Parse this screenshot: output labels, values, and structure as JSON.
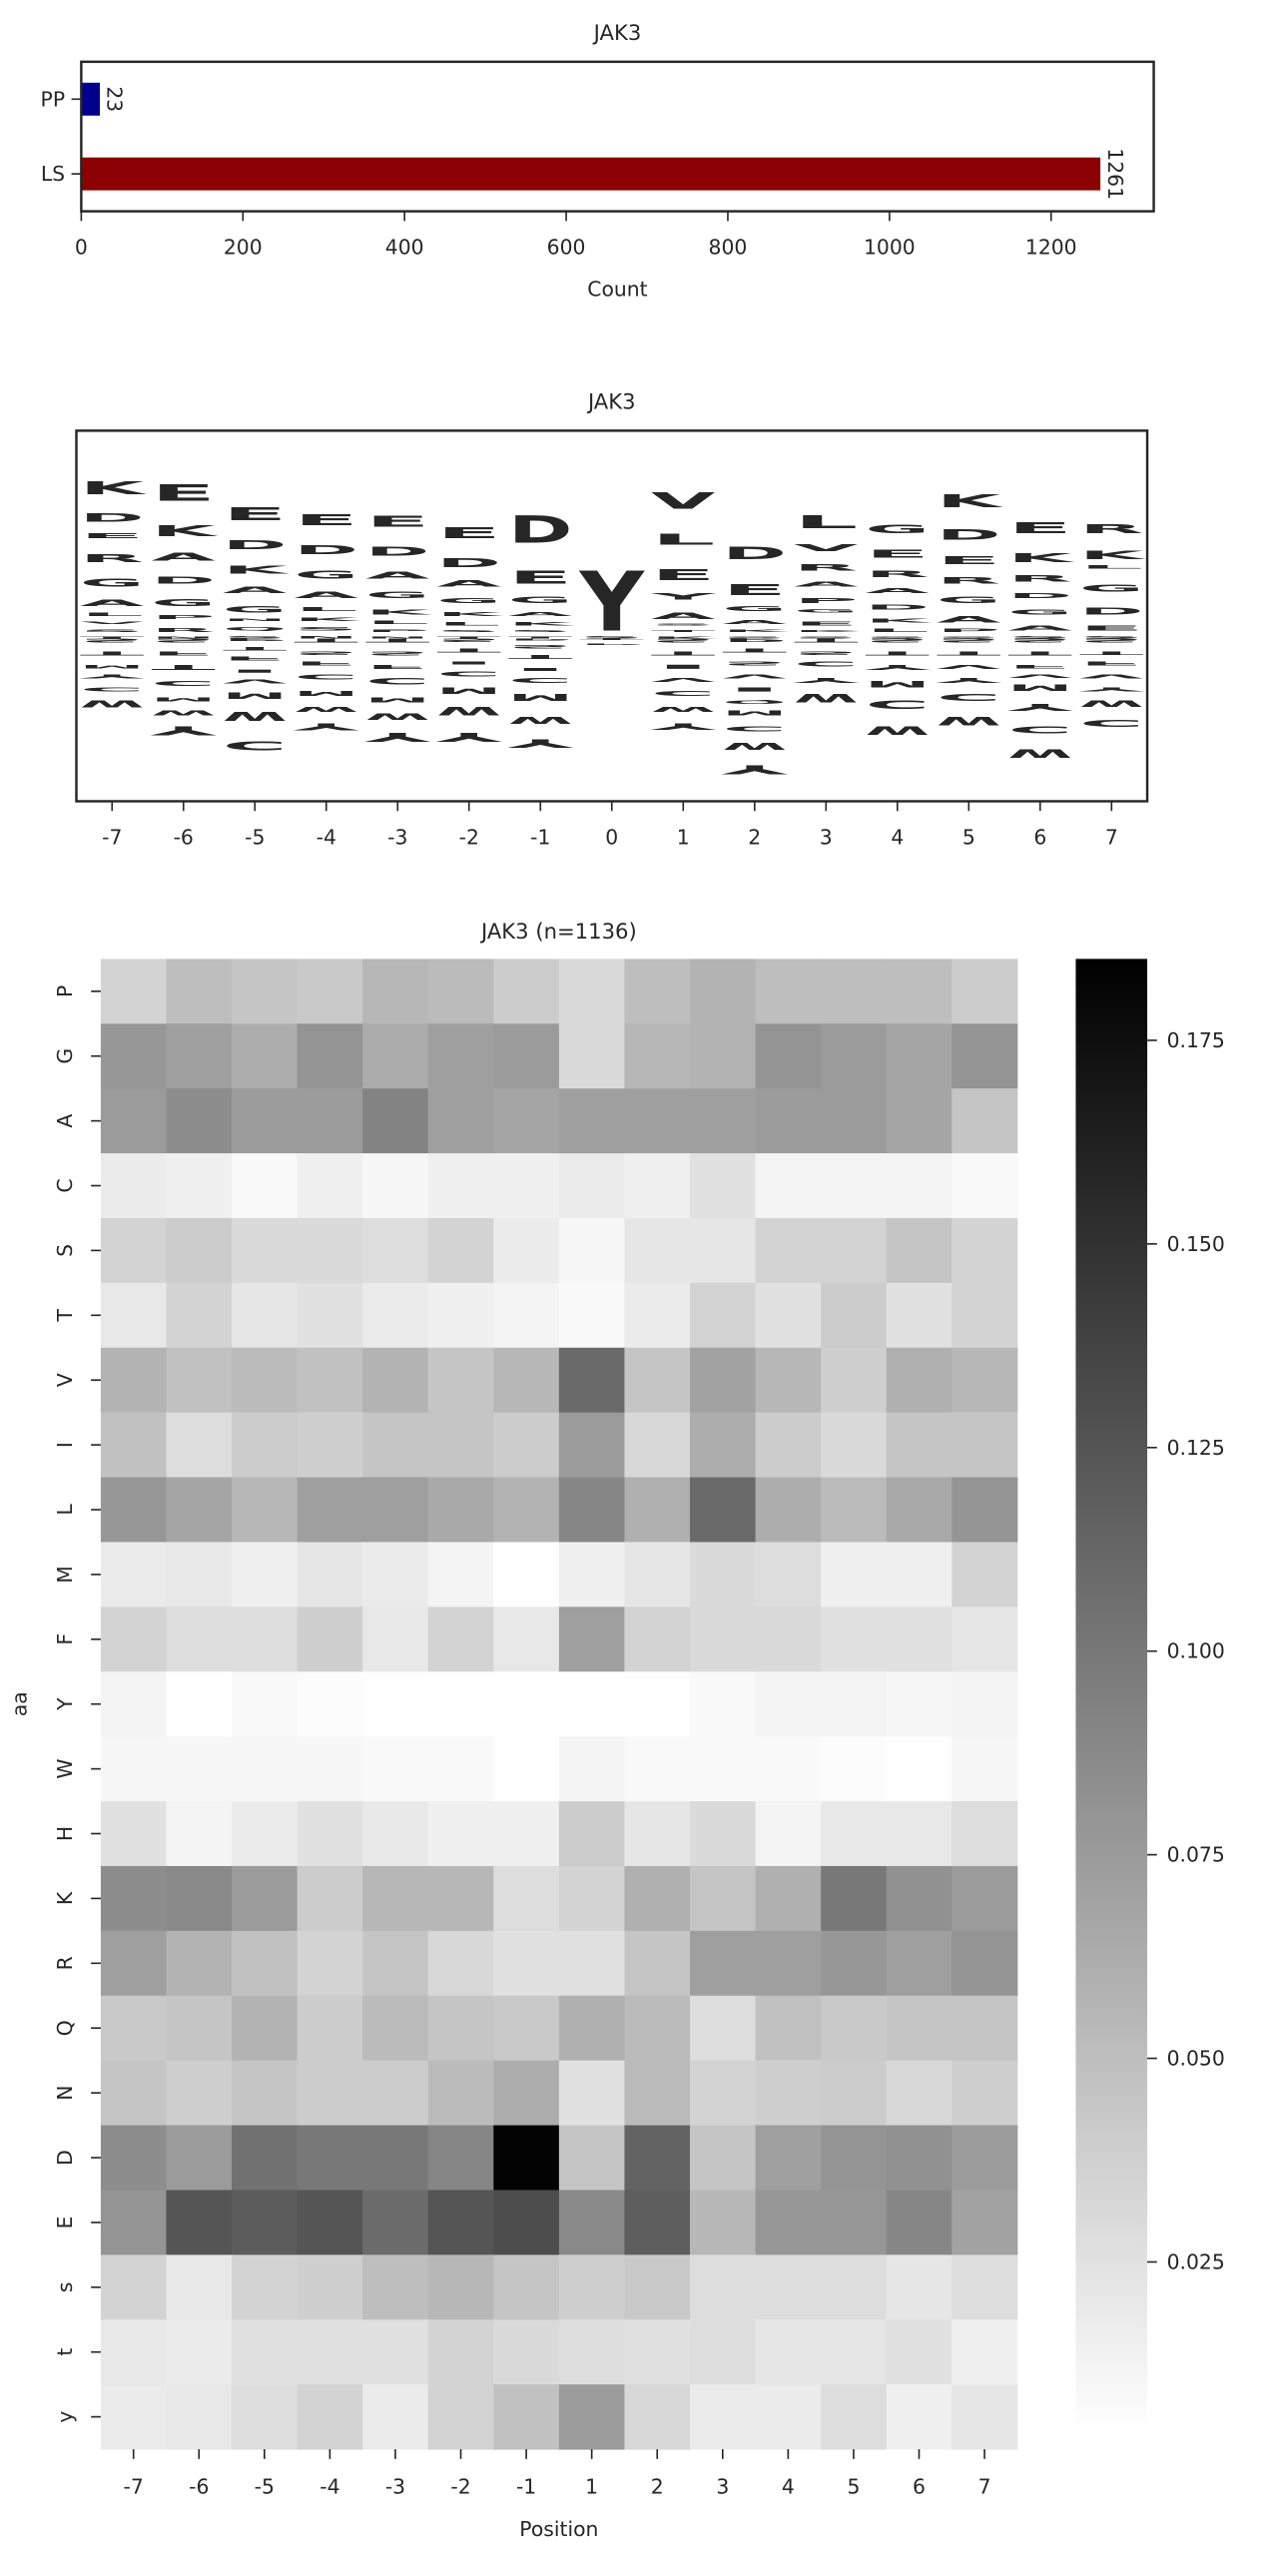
{
  "chart_data": [
    {
      "type": "bar",
      "orientation": "horizontal",
      "title": "JAK3",
      "categories": [
        "PP",
        "LS"
      ],
      "values": [
        23,
        1261
      ],
      "colors": [
        "#00008b",
        "#8b0000"
      ],
      "xlim": [
        0,
        1327
      ],
      "xticks": [
        0,
        200,
        400,
        600,
        800,
        1000,
        1200
      ],
      "xlabel": "Count"
    },
    {
      "type": "logo",
      "title": "JAK3",
      "categories": [
        "-7",
        "-6",
        "-5",
        "-4",
        "-3",
        "-2",
        "-1",
        "0",
        "1",
        "2",
        "3",
        "4",
        "5",
        "6",
        "7"
      ],
      "ylim": [
        -100,
        128
      ],
      "letter_colors": {
        "K": "#0000ff",
        "R": "#0000ff",
        "H": "#0000ff",
        "D": "#dc143c",
        "E": "#dc143c",
        "G": "#008000",
        "A": "#008000",
        "S": "#9932cc",
        "T": "#9932cc",
        "N": "#9932cc",
        "Q": "#9932cc",
        "P": "#000000",
        "L": "#daa520",
        "V": "#daa520",
        "I": "#daa520",
        "M": "#daa520",
        "C": "#daa520",
        "W": "#daa520",
        "F": "#daa520",
        "Y": "#8b4513"
      },
      "stacks": [
        {
          "letters": [
            "T",
            "S",
            "V",
            "L",
            "A",
            "G",
            "R",
            "E",
            "D",
            "K",
            "S",
            "T",
            "M",
            "Y",
            "C",
            "W"
          ],
          "heights": [
            4,
            5,
            5,
            6,
            12,
            15,
            15,
            10,
            17,
            25,
            -8,
            -8,
            -6,
            -8,
            -8,
            -14
          ]
        },
        {
          "letters": [
            "N",
            "R",
            "P",
            "G",
            "D",
            "A",
            "K",
            "E",
            "S",
            "F",
            "T",
            "C",
            "M",
            "W",
            "Y"
          ],
          "heights": [
            4,
            8,
            8,
            14,
            14,
            15,
            22,
            32,
            -8,
            -8,
            -10,
            -10,
            -8,
            -10,
            -18
          ]
        },
        {
          "letters": [
            "S",
            "Q",
            "N",
            "G",
            "A",
            "K",
            "D",
            "E",
            "P",
            "T",
            "F",
            "I",
            "V",
            "M",
            "W",
            "C"
          ],
          "heights": [
            5,
            6,
            5,
            12,
            12,
            15,
            18,
            25,
            -5,
            -6,
            -8,
            -6,
            -8,
            -12,
            -18,
            -18
          ]
        },
        {
          "letters": [
            "N",
            "S",
            "K",
            "L",
            "A",
            "G",
            "D",
            "E",
            "T",
            "S",
            "F",
            "C",
            "M",
            "W",
            "Y"
          ],
          "heights": [
            5,
            6,
            6,
            8,
            12,
            15,
            18,
            22,
            -8,
            -6,
            -8,
            -10,
            -10,
            -10,
            -14
          ]
        },
        {
          "letters": [
            "N",
            "P",
            "L",
            "K",
            "G",
            "A",
            "D",
            "E",
            "T",
            "S",
            "F",
            "C",
            "M",
            "W",
            "Y"
          ],
          "heights": [
            4,
            5,
            6,
            10,
            12,
            14,
            18,
            22,
            -8,
            -8,
            -8,
            -12,
            -10,
            -12,
            -18
          ]
        },
        {
          "letters": [
            "T",
            "S",
            "L",
            "K",
            "G",
            "A",
            "D",
            "E",
            "S",
            "T",
            "I",
            "C",
            "M",
            "W",
            "Y"
          ],
          "heights": [
            4,
            4,
            6,
            8,
            10,
            12,
            18,
            22,
            -6,
            -8,
            -6,
            -10,
            -12,
            -16,
            -18
          ]
        },
        {
          "letters": [
            "T",
            "S",
            "K",
            "A",
            "G",
            "E",
            "D",
            "P",
            "S",
            "T",
            "I",
            "C",
            "M",
            "W",
            "Y"
          ],
          "heights": [
            4,
            4,
            6,
            8,
            12,
            25,
            53,
            -4,
            -6,
            -8,
            -6,
            -10,
            -14,
            -14,
            -16
          ]
        },
        {
          "letters": [
            "S",
            "Y",
            "T",
            "P"
          ],
          "heights": [
            5,
            118,
            -3,
            -2
          ]
        },
        {
          "letters": [
            "K",
            "T",
            "S",
            "A",
            "Y",
            "E",
            "L",
            "V",
            "S",
            "T",
            "I",
            "V",
            "C",
            "W",
            "Y"
          ],
          "heights": [
            4,
            4,
            4,
            12,
            12,
            22,
            22,
            32,
            -8,
            -8,
            -8,
            -8,
            -10,
            -10,
            -12
          ]
        },
        {
          "letters": [
            "S",
            "K",
            "A",
            "G",
            "E",
            "D",
            "P",
            "T",
            "S",
            "V",
            "I",
            "Q",
            "M",
            "C",
            "W",
            "Y"
          ],
          "heights": [
            4,
            5,
            8,
            10,
            22,
            24,
            -6,
            -8,
            -8,
            -8,
            -8,
            -6,
            -10,
            -10,
            -14,
            -18
          ]
        },
        {
          "letters": [
            "S",
            "K",
            "E",
            "G",
            "P",
            "A",
            "R",
            "V",
            "L",
            "T",
            "S",
            "C",
            "Y",
            "W"
          ],
          "heights": [
            4,
            4,
            8,
            6,
            10,
            10,
            12,
            14,
            25,
            -8,
            -6,
            -10,
            -10,
            -16
          ]
        },
        {
          "letters": [
            "S",
            "L",
            "K",
            "D",
            "A",
            "R",
            "E",
            "G",
            "S",
            "T",
            "Y",
            "M",
            "C",
            "W"
          ],
          "heights": [
            4,
            6,
            8,
            10,
            10,
            12,
            15,
            16,
            -8,
            -8,
            -10,
            -12,
            -16,
            -16
          ]
        },
        {
          "letters": [
            "S",
            "P",
            "A",
            "G",
            "R",
            "E",
            "D",
            "K",
            "S",
            "T",
            "V",
            "Y",
            "C",
            "W"
          ],
          "heights": [
            4,
            6,
            12,
            12,
            12,
            15,
            20,
            25,
            -8,
            -8,
            -8,
            -10,
            -14,
            -16
          ]
        },
        {
          "letters": [
            "S",
            "A",
            "G",
            "D",
            "R",
            "K",
            "E",
            "S",
            "T",
            "F",
            "V",
            "M",
            "Y",
            "C",
            "W"
          ],
          "heights": [
            5,
            10,
            10,
            10,
            12,
            18,
            22,
            -8,
            -8,
            -6,
            -6,
            -12,
            -14,
            -14,
            -16
          ]
        },
        {
          "letters": [
            "S",
            "E",
            "D",
            "G",
            "L",
            "K",
            "R",
            "S",
            "T",
            "F",
            "V",
            "Y",
            "W",
            "C"
          ],
          "heights": [
            5,
            10,
            14,
            14,
            6,
            16,
            18,
            -8,
            -6,
            -8,
            -8,
            -8,
            -12,
            -14
          ]
        }
      ]
    },
    {
      "type": "heatmap",
      "title": "JAK3 (n=1136)",
      "xlabel": "Position",
      "ylabel": "aa",
      "x_categories": [
        "-7",
        "-6",
        "-5",
        "-4",
        "-3",
        "-2",
        "-1",
        "1",
        "2",
        "3",
        "4",
        "5",
        "6",
        "7"
      ],
      "y_categories": [
        "P",
        "G",
        "A",
        "C",
        "S",
        "T",
        "V",
        "I",
        "L",
        "M",
        "F",
        "Y",
        "W",
        "H",
        "K",
        "R",
        "Q",
        "N",
        "D",
        "E",
        "s",
        "t",
        "y"
      ],
      "values": [
        [
          0.035,
          0.05,
          0.045,
          0.042,
          0.055,
          0.052,
          0.04,
          0.03,
          0.05,
          0.058,
          0.05,
          0.05,
          0.05,
          0.04
        ],
        [
          0.078,
          0.072,
          0.062,
          0.08,
          0.063,
          0.072,
          0.075,
          0.03,
          0.055,
          0.058,
          0.08,
          0.075,
          0.068,
          0.08
        ],
        [
          0.075,
          0.085,
          0.075,
          0.075,
          0.092,
          0.072,
          0.068,
          0.072,
          0.072,
          0.072,
          0.075,
          0.075,
          0.068,
          0.045
        ],
        [
          0.018,
          0.015,
          0.008,
          0.015,
          0.01,
          0.015,
          0.015,
          0.018,
          0.015,
          0.025,
          0.012,
          0.012,
          0.012,
          0.008
        ],
        [
          0.035,
          0.04,
          0.03,
          0.03,
          0.028,
          0.035,
          0.018,
          0.01,
          0.022,
          0.022,
          0.035,
          0.035,
          0.045,
          0.035
        ],
        [
          0.02,
          0.035,
          0.022,
          0.025,
          0.018,
          0.015,
          0.012,
          0.008,
          0.018,
          0.035,
          0.025,
          0.04,
          0.025,
          0.035
        ],
        [
          0.058,
          0.048,
          0.052,
          0.048,
          0.058,
          0.045,
          0.055,
          0.11,
          0.045,
          0.07,
          0.055,
          0.038,
          0.06,
          0.055
        ],
        [
          0.048,
          0.028,
          0.04,
          0.038,
          0.045,
          0.045,
          0.04,
          0.075,
          0.032,
          0.062,
          0.04,
          0.03,
          0.045,
          0.045
        ],
        [
          0.078,
          0.068,
          0.055,
          0.072,
          0.072,
          0.065,
          0.058,
          0.09,
          0.06,
          0.11,
          0.062,
          0.052,
          0.065,
          0.08
        ],
        [
          0.018,
          0.02,
          0.015,
          0.022,
          0.018,
          0.012,
          0.005,
          0.015,
          0.022,
          0.03,
          0.028,
          0.015,
          0.015,
          0.035
        ],
        [
          0.035,
          0.028,
          0.028,
          0.038,
          0.02,
          0.035,
          0.02,
          0.072,
          0.035,
          0.03,
          0.03,
          0.025,
          0.025,
          0.022
        ],
        [
          0.012,
          0.004,
          0.008,
          0.006,
          0.005,
          0.004,
          0.004,
          0.004,
          0.005,
          0.008,
          0.012,
          0.012,
          0.01,
          0.012
        ],
        [
          0.01,
          0.01,
          0.01,
          0.01,
          0.008,
          0.008,
          0.004,
          0.012,
          0.008,
          0.008,
          0.008,
          0.006,
          0.005,
          0.01
        ],
        [
          0.025,
          0.012,
          0.018,
          0.025,
          0.02,
          0.015,
          0.015,
          0.04,
          0.022,
          0.03,
          0.012,
          0.02,
          0.02,
          0.028
        ],
        [
          0.085,
          0.088,
          0.075,
          0.04,
          0.055,
          0.055,
          0.028,
          0.035,
          0.06,
          0.045,
          0.06,
          0.1,
          0.082,
          0.075
        ],
        [
          0.072,
          0.058,
          0.048,
          0.035,
          0.045,
          0.032,
          0.025,
          0.025,
          0.045,
          0.072,
          0.072,
          0.078,
          0.072,
          0.08
        ],
        [
          0.042,
          0.045,
          0.058,
          0.04,
          0.052,
          0.045,
          0.042,
          0.06,
          0.052,
          0.028,
          0.048,
          0.042,
          0.045,
          0.045
        ],
        [
          0.045,
          0.038,
          0.045,
          0.04,
          0.04,
          0.052,
          0.062,
          0.025,
          0.052,
          0.035,
          0.038,
          0.04,
          0.032,
          0.038
        ],
        [
          0.085,
          0.075,
          0.105,
          0.1,
          0.1,
          0.09,
          0.183,
          0.045,
          0.115,
          0.045,
          0.072,
          0.08,
          0.082,
          0.075
        ],
        [
          0.08,
          0.125,
          0.12,
          0.125,
          0.108,
          0.125,
          0.13,
          0.088,
          0.118,
          0.055,
          0.078,
          0.078,
          0.09,
          0.07
        ],
        [
          0.035,
          0.02,
          0.035,
          0.038,
          0.05,
          0.055,
          0.045,
          0.038,
          0.042,
          0.028,
          0.028,
          0.028,
          0.022,
          0.028
        ],
        [
          0.02,
          0.018,
          0.025,
          0.025,
          0.025,
          0.035,
          0.03,
          0.028,
          0.025,
          0.028,
          0.022,
          0.022,
          0.025,
          0.015
        ],
        [
          0.018,
          0.02,
          0.028,
          0.035,
          0.018,
          0.035,
          0.048,
          0.075,
          0.032,
          0.018,
          0.018,
          0.028,
          0.015,
          0.022
        ]
      ],
      "zlim": [
        0.004,
        0.185
      ],
      "colormap": [
        "#ffffff",
        "#000000"
      ],
      "colorbar_ticks": [
        0.025,
        {
          "value": 0.05,
          "label": "0.050"
        },
        0.075,
        {
          "value": 0.1,
          "label": "0.100"
        },
        0.125,
        {
          "value": 0.15,
          "label": "0.150"
        },
        0.175
      ]
    }
  ]
}
